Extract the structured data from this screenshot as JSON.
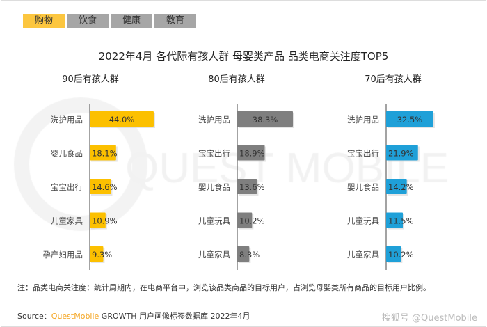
{
  "tabs": [
    {
      "label": "购物",
      "active": true
    },
    {
      "label": "饮食"
    },
    {
      "label": "健康"
    },
    {
      "label": "教育"
    }
  ],
  "watermark": "QUEST MOBILE",
  "chart_data": [
    {
      "type": "bar",
      "orientation": "horizontal",
      "title": "90后有孩人群",
      "color": "#fcc000",
      "categories": [
        "洗护用品",
        "婴儿食品",
        "宝宝出行",
        "儿童家具",
        "孕产妇用品"
      ],
      "values": [
        44.0,
        18.1,
        14.6,
        10.9,
        9.3
      ],
      "labels": [
        "44.0%",
        "18.1%",
        "14.6%",
        "10.9%",
        "9.3%"
      ]
    },
    {
      "type": "bar",
      "orientation": "horizontal",
      "title": "80后有孩人群",
      "color": "#7f7f7f",
      "categories": [
        "洗护用品",
        "宝宝出行",
        "婴儿食品",
        "儿童玩具",
        "儿童家具"
      ],
      "values": [
        38.3,
        18.9,
        13.6,
        10.2,
        8.3
      ],
      "labels": [
        "38.3%",
        "18.9%",
        "13.6%",
        "10.2%",
        "8.3%"
      ]
    },
    {
      "type": "bar",
      "orientation": "horizontal",
      "title": "70后有孩人群",
      "color": "#1fa0d8",
      "categories": [
        "洗护用品",
        "宝宝出行",
        "婴儿食品",
        "儿童玩具",
        "儿童家具"
      ],
      "values": [
        32.5,
        21.9,
        14.2,
        11.5,
        10.2
      ],
      "labels": [
        "32.5%",
        "21.9%",
        "14.2%",
        "11.5%",
        "10.2%"
      ]
    }
  ],
  "title": "2022年4月 各代际有孩人群 母婴类产品 品类电商关注度TOP5",
  "note": "注：品类电商关注度：统计周期内，在电商平台中，浏览该品类商品的目标用户，占浏览母婴类所有商品的目标用户比例。",
  "source": {
    "prefix": "Source：",
    "brand": "QuestMobile",
    "rest": " GROWTH 用户画像标签数据库 2022年4月"
  },
  "credit": "搜狐号 @QuestMobile"
}
